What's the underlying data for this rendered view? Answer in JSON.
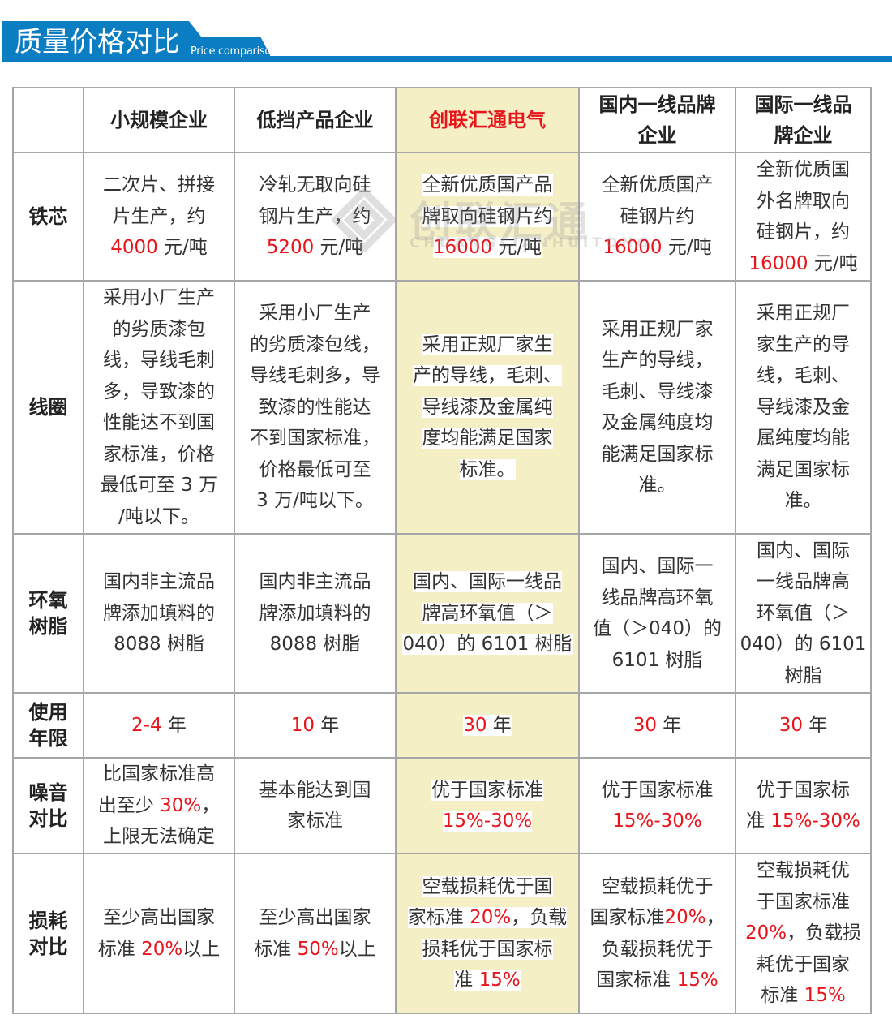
{
  "header": {
    "title": "质量价格对比",
    "subtitle": "Price comparison",
    "accent": "#0b7dc2"
  },
  "watermark": {
    "cn": "创联汇通",
    "en": "CHUANGLIANHUITONG"
  },
  "colors": {
    "highlight": "#f5efc6",
    "red": "#e8141b"
  },
  "table": {
    "columns": [
      {
        "label": "小规模企业",
        "red": false
      },
      {
        "label": "低挡产品企业",
        "red": false
      },
      {
        "label": "创联汇通电气",
        "red": true
      },
      {
        "label": "国内一线品牌\n企业",
        "red": false
      },
      {
        "label": "国际一线品\n牌企业",
        "red": false
      }
    ],
    "rows": [
      {
        "label": "铁芯",
        "cells": [
          [
            {
              "t": "二次片、拼接\n片生产，约\n"
            },
            {
              "t": "4000",
              "red": true
            },
            {
              "t": " 元/吨"
            }
          ],
          [
            {
              "t": "冷轧无取向硅\n钢片生产，约\n"
            },
            {
              "t": "5200",
              "red": true
            },
            {
              "t": " 元/吨"
            }
          ],
          [
            {
              "t": "全新优质国产品\n牌取向硅钢片约\n"
            },
            {
              "t": "16000",
              "red": true
            },
            {
              "t": " 元/吨"
            }
          ],
          [
            {
              "t": "全新优质国产\n硅钢片约\n"
            },
            {
              "t": "16000",
              "red": true
            },
            {
              "t": " 元/吨"
            }
          ],
          [
            {
              "t": "全新优质国\n外名牌取向\n硅钢片，约\n"
            },
            {
              "t": "16000",
              "red": true
            },
            {
              "t": " 元/吨"
            }
          ]
        ]
      },
      {
        "label": "线圈",
        "cells": [
          [
            {
              "t": "采用小厂生产\n的劣质漆包\n线，导线毛刺\n多，导致漆的\n性能达不到国\n家标准，价格\n最低可至 3 万\n/吨以下。"
            }
          ],
          [
            {
              "t": "采用小厂生产\n的劣质漆包线，\n导线毛刺多，导\n致漆的性能达\n不到国家标准，\n价格最低可至\n3 万/吨以下。"
            }
          ],
          [
            {
              "t": "采用正规厂家生\n产的导线，毛刺、\n导线漆及金属纯\n度均能满足国家\n标准。"
            }
          ],
          [
            {
              "t": "采用正规厂家\n生产的导线，\n毛刺、导线漆\n及金属纯度均\n能满足国家标\n准。"
            }
          ],
          [
            {
              "t": "采用正规厂\n家生产的导\n线，毛刺、\n导线漆及金\n属纯度均能\n满足国家标\n准。"
            }
          ]
        ]
      },
      {
        "label": "环氧\n树脂",
        "cells": [
          [
            {
              "t": "国内非主流品\n牌添加填料的\n8088 树脂"
            }
          ],
          [
            {
              "t": "国内非主流品\n牌添加填料的\n8088 树脂"
            }
          ],
          [
            {
              "t": "国内、国际一线品\n牌高环氧值（＞\n040）的 6101 树脂"
            }
          ],
          [
            {
              "t": "国内、国际一\n线品牌高环氧\n值（＞040）的\n6101 树脂"
            }
          ],
          [
            {
              "t": "国内、国际\n一线品牌高\n环氧值（＞\n040）的 6101\n树脂"
            }
          ]
        ]
      },
      {
        "label": "使用\n年限",
        "cells": [
          [
            {
              "t": "2-4",
              "red": true
            },
            {
              "t": " 年"
            }
          ],
          [
            {
              "t": "10",
              "red": true
            },
            {
              "t": " 年"
            }
          ],
          [
            {
              "t": "30",
              "red": true
            },
            {
              "t": " 年"
            }
          ],
          [
            {
              "t": "30",
              "red": true
            },
            {
              "t": " 年"
            }
          ],
          [
            {
              "t": "30",
              "red": true
            },
            {
              "t": " 年"
            }
          ]
        ]
      },
      {
        "label": "噪音\n对比",
        "cells": [
          [
            {
              "t": "比国家标准高\n出至少 "
            },
            {
              "t": "30%",
              "red": true
            },
            {
              "t": "，\n上限无法确定"
            }
          ],
          [
            {
              "t": "基本能达到国\n家标准"
            }
          ],
          [
            {
              "t": "优于国家标准\n"
            },
            {
              "t": "15%-30%",
              "red": true
            }
          ],
          [
            {
              "t": "优于国家标准\n"
            },
            {
              "t": "15%-30%",
              "red": true
            }
          ],
          [
            {
              "t": "优于国家标\n准 "
            },
            {
              "t": "15%-30%",
              "red": true
            }
          ]
        ]
      },
      {
        "label": "损耗\n对比",
        "cells": [
          [
            {
              "t": "至少高出国家\n标准 "
            },
            {
              "t": "20%",
              "red": true
            },
            {
              "t": "以上"
            }
          ],
          [
            {
              "t": "至少高出国家\n标准 "
            },
            {
              "t": "50%",
              "red": true
            },
            {
              "t": "以上"
            }
          ],
          [
            {
              "t": "空载损耗优于国\n家标准 "
            },
            {
              "t": "20%",
              "red": true
            },
            {
              "t": "，负载\n损耗优于国家标\n准 "
            },
            {
              "t": "15%",
              "red": true
            }
          ],
          [
            {
              "t": "空载损耗优于\n国家标准"
            },
            {
              "t": "20%",
              "red": true
            },
            {
              "t": "，\n负载损耗优于\n国家标准 "
            },
            {
              "t": "15%",
              "red": true
            }
          ],
          [
            {
              "t": "空载损耗优\n于国家标准\n"
            },
            {
              "t": "20%",
              "red": true
            },
            {
              "t": "，负载损\n耗优于国家\n标准 "
            },
            {
              "t": "15%",
              "red": true
            }
          ]
        ]
      }
    ]
  }
}
